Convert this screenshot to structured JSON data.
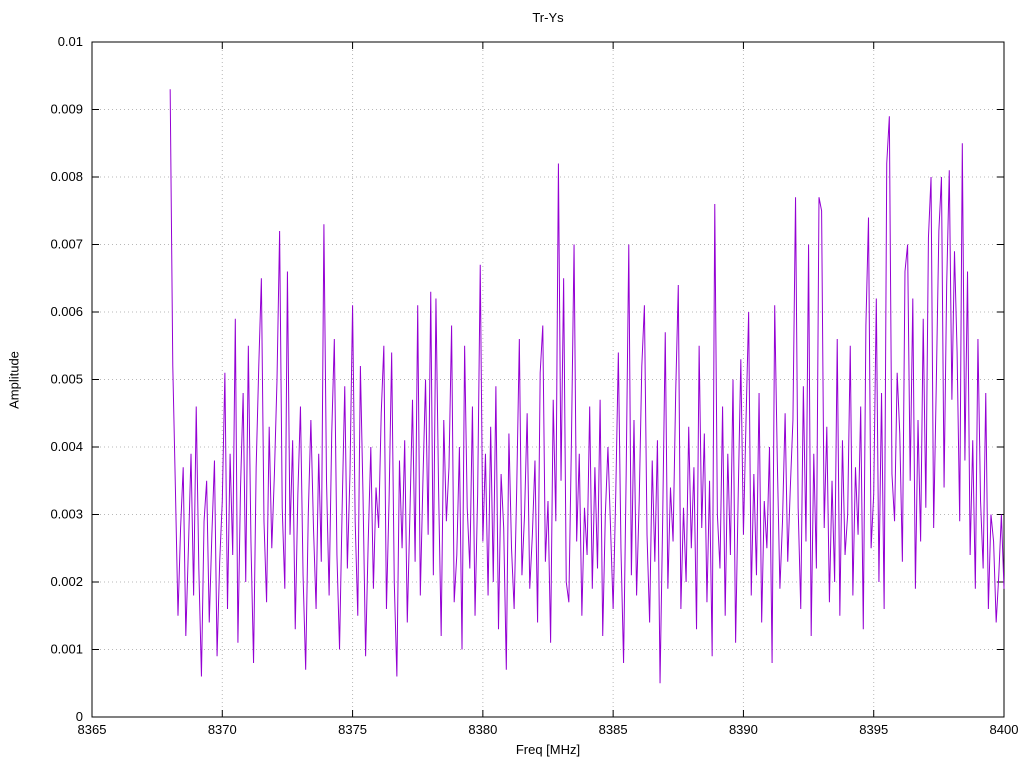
{
  "title": "Tr-Ys",
  "x_axis_label": "Freq [MHz]",
  "y_axis_label": "Amplitude",
  "colors": {
    "line": "#9400D3",
    "grid": "#b8b8b8",
    "axis": "#000000",
    "background": "#ffffff"
  },
  "chart_data": {
    "type": "line",
    "title": "Tr-Ys",
    "xlabel": "Freq [MHz]",
    "ylabel": "Amplitude",
    "xlim": [
      8365,
      8400
    ],
    "ylim": [
      0,
      0.01
    ],
    "grid": true,
    "legend": "none",
    "x_ticks": [
      8365,
      8370,
      8375,
      8380,
      8385,
      8390,
      8395,
      8400
    ],
    "x_tick_labels": [
      "8365",
      "8370",
      "8375",
      "8380",
      "8385",
      "8390",
      "8395",
      "8400"
    ],
    "y_ticks": [
      0,
      0.001,
      0.002,
      0.003,
      0.004,
      0.005,
      0.006,
      0.007,
      0.008,
      0.009,
      0.01
    ],
    "y_tick_labels": [
      "0",
      "0.001",
      "0.002",
      "0.003",
      "0.004",
      "0.005",
      "0.006",
      "0.007",
      "0.008",
      "0.009",
      "0.01"
    ],
    "series": [
      {
        "name": "Tr-Ys",
        "x_start": 8368.0,
        "x_step": 0.1,
        "y_scale": 0.001,
        "y_milli": [
          9.3,
          5.2,
          3.4,
          1.5,
          2.8,
          3.7,
          1.2,
          2.5,
          3.9,
          1.8,
          4.6,
          2.2,
          0.6,
          2.9,
          3.5,
          1.4,
          2.7,
          3.8,
          0.9,
          2.3,
          3.2,
          5.1,
          1.6,
          3.9,
          2.4,
          5.9,
          1.1,
          3.4,
          4.8,
          2.0,
          5.5,
          2.6,
          0.8,
          3.7,
          5.2,
          6.5,
          2.9,
          1.7,
          4.3,
          2.5,
          3.6,
          5.0,
          7.2,
          3.1,
          1.9,
          6.6,
          2.7,
          4.1,
          1.3,
          3.3,
          4.6,
          2.1,
          0.7,
          3.0,
          4.4,
          2.8,
          1.6,
          3.9,
          2.3,
          7.3,
          3.5,
          1.8,
          4.2,
          5.6,
          2.4,
          1.0,
          3.1,
          4.9,
          2.2,
          3.6,
          6.1,
          2.9,
          1.5,
          5.2,
          3.3,
          0.9,
          2.6,
          4.0,
          1.9,
          3.4,
          2.8,
          4.5,
          5.5,
          1.6,
          3.2,
          5.4,
          2.0,
          0.6,
          3.8,
          2.5,
          4.1,
          1.4,
          3.0,
          4.7,
          2.3,
          6.1,
          1.8,
          3.5,
          5.0,
          2.7,
          6.3,
          2.1,
          6.2,
          3.4,
          1.2,
          4.4,
          2.9,
          3.7,
          5.8,
          1.7,
          2.4,
          4.0,
          1.0,
          5.5,
          3.1,
          2.2,
          4.6,
          1.5,
          3.3,
          6.7,
          2.6,
          3.9,
          1.8,
          4.3,
          2.0,
          4.9,
          1.3,
          3.6,
          2.8,
          0.7,
          4.2,
          2.5,
          1.6,
          3.4,
          5.6,
          2.1,
          3.0,
          4.5,
          1.9,
          2.7,
          3.8,
          1.4,
          5.1,
          5.8,
          2.3,
          3.2,
          1.1,
          4.7,
          2.9,
          8.2,
          3.5,
          6.5,
          2.0,
          1.7,
          4.1,
          7.0,
          2.6,
          3.9,
          1.5,
          3.1,
          2.4,
          4.6,
          1.9,
          3.7,
          2.2,
          4.7,
          1.2,
          3.0,
          4.0,
          2.8,
          1.6,
          3.3,
          5.4,
          2.5,
          0.8,
          3.6,
          7.0,
          2.1,
          4.4,
          1.8,
          3.2,
          5.2,
          6.1,
          2.7,
          1.4,
          3.8,
          2.3,
          4.1,
          0.5,
          2.9,
          5.7,
          1.9,
          3.4,
          2.6,
          4.8,
          6.4,
          1.6,
          3.1,
          2.0,
          4.3,
          2.5,
          3.7,
          1.3,
          5.5,
          2.8,
          4.2,
          1.7,
          3.5,
          0.9,
          7.6,
          3.0,
          2.2,
          4.6,
          1.5,
          3.9,
          2.4,
          5.0,
          1.1,
          3.3,
          5.3,
          2.7,
          4.4,
          6.0,
          1.8,
          3.6,
          2.1,
          4.8,
          1.4,
          3.2,
          2.5,
          4.0,
          0.8,
          6.1,
          3.8,
          1.9,
          2.9,
          4.5,
          2.3,
          3.4,
          4.4,
          7.7,
          3.1,
          1.6,
          4.9,
          2.6,
          7.0,
          1.2,
          3.9,
          2.2,
          7.7,
          7.5,
          2.8,
          4.3,
          1.7,
          3.5,
          2.0,
          5.6,
          1.5,
          4.1,
          2.4,
          3.0,
          5.5,
          1.8,
          3.7,
          2.7,
          4.6,
          1.3,
          5.8,
          7.4,
          2.5,
          3.3,
          6.2,
          2.0,
          4.8,
          1.6,
          8.2,
          8.9,
          3.6,
          2.9,
          5.1,
          4.2,
          2.3,
          6.6,
          7.0,
          3.5,
          6.2,
          1.9,
          4.4,
          2.6,
          5.9,
          3.1,
          7.1,
          8.0,
          2.8,
          4.9,
          7.2,
          8.0,
          3.4,
          6.4,
          8.1,
          4.7,
          6.9,
          5.4,
          2.9,
          8.5,
          3.8,
          6.6,
          2.4,
          4.1,
          1.9,
          5.6,
          3.2,
          2.2,
          4.8,
          1.6,
          3.0,
          2.6,
          1.4,
          2.1,
          3.0,
          1.9
        ]
      }
    ]
  }
}
